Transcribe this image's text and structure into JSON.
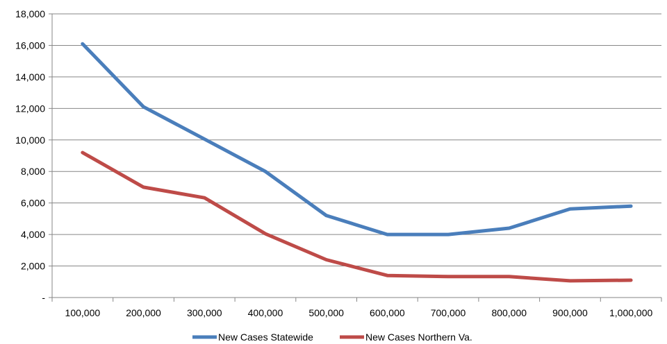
{
  "chart_data": {
    "type": "line",
    "categories": [
      "100,000",
      "200,000",
      "300,000",
      "400,000",
      "500,000",
      "600,000",
      "700,000",
      "800,000",
      "900,000",
      "1,000,000"
    ],
    "series": [
      {
        "name": "New Cases Statewide",
        "color": "#4a7ebb",
        "values": [
          16100,
          12100,
          10050,
          8000,
          5200,
          4000,
          4000,
          4400,
          5620,
          5800
        ]
      },
      {
        "name": "New Cases Northern Va.",
        "color": "#be4b48",
        "values": [
          9200,
          7000,
          6330,
          4050,
          2400,
          1400,
          1330,
          1330,
          1060,
          1100
        ]
      }
    ],
    "y_ticks": [
      "-",
      "2,000",
      "4,000",
      "6,000",
      "8,000",
      "10,000",
      "12,000",
      "14,000",
      "16,000",
      "18,000"
    ],
    "ylim": [
      0,
      18000
    ],
    "grid": true,
    "legend_position": "bottom"
  }
}
